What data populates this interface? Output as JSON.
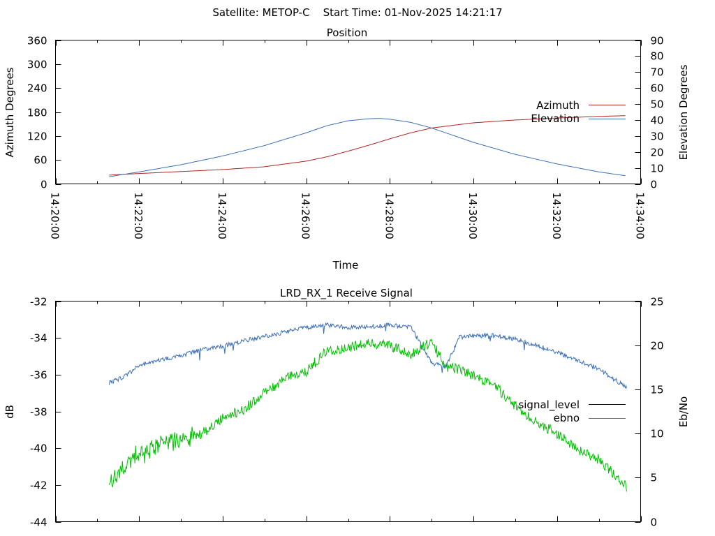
{
  "page_title": "Satellite: METOP-C    Start Time: 01-Nov-2025 14:21:17",
  "chart_data": [
    {
      "type": "line",
      "title": "Position",
      "xlabel": "Time",
      "ylabel": "Azimuth Degrees",
      "y2label": "Elevation Degrees",
      "xlim": [
        "14:20:00",
        "14:34:00"
      ],
      "x_ticks": [
        "14:20:00",
        "14:22:00",
        "14:24:00",
        "14:26:00",
        "14:28:00",
        "14:30:00",
        "14:32:00",
        "14:34:00"
      ],
      "ylim": [
        0,
        360
      ],
      "y_ticks": [
        "0",
        "60",
        "120",
        "180",
        "240",
        "300",
        "360"
      ],
      "y2lim": [
        0,
        90
      ],
      "y2_ticks": [
        "0",
        "10",
        "20",
        "30",
        "40",
        "50",
        "60",
        "70",
        "80",
        "90"
      ],
      "legend_position": "right",
      "series": [
        {
          "name": "Azimuth",
          "axis": "y",
          "color": "#b22222",
          "x": [
            "14:21:17",
            "14:22:00",
            "14:23:00",
            "14:24:00",
            "14:25:00",
            "14:26:00",
            "14:26:30",
            "14:27:00",
            "14:27:30",
            "14:28:00",
            "14:28:30",
            "14:29:00",
            "14:30:00",
            "14:31:00",
            "14:32:00",
            "14:33:00",
            "14:33:40"
          ],
          "y": [
            22,
            26,
            31,
            36,
            43,
            57,
            68,
            82,
            97,
            113,
            128,
            140,
            153,
            160,
            165,
            169,
            171
          ]
        },
        {
          "name": "Elevation",
          "axis": "y2",
          "color": "#3c6eb4",
          "x": [
            "14:21:17",
            "14:22:00",
            "14:23:00",
            "14:24:00",
            "14:25:00",
            "14:26:00",
            "14:26:30",
            "14:27:00",
            "14:27:30",
            "14:27:45",
            "14:28:00",
            "14:28:30",
            "14:29:00",
            "14:30:00",
            "14:31:00",
            "14:32:00",
            "14:33:00",
            "14:33:40"
          ],
          "y": [
            4.5,
            7.5,
            12,
            17.5,
            24,
            32,
            36.5,
            39.5,
            40.8,
            41,
            40.5,
            38.5,
            35,
            26,
            18.5,
            12.5,
            7.5,
            5
          ]
        }
      ]
    },
    {
      "type": "line",
      "title": "LRD_RX_1 Receive Signal",
      "xlabel": "",
      "ylabel": "dB",
      "y2label": "Eb/No",
      "xlim": [
        "14:20:00",
        "14:34:00"
      ],
      "ylim": [
        -44,
        -32
      ],
      "y_ticks": [
        "-44",
        "-42",
        "-40",
        "-38",
        "-36",
        "-34",
        "-32"
      ],
      "y2lim": [
        0,
        25
      ],
      "y2_ticks": [
        "0",
        "5",
        "10",
        "15",
        "20",
        "25"
      ],
      "legend_position": "right",
      "series": [
        {
          "name": "signal_level",
          "axis": "y",
          "color": "#00c000",
          "legend_color": "#000000",
          "x": [
            "14:21:17",
            "14:21:40",
            "14:22:00",
            "14:22:30",
            "14:23:00",
            "14:23:30",
            "14:24:00",
            "14:24:30",
            "14:25:00",
            "14:25:30",
            "14:26:00",
            "14:26:30",
            "14:27:00",
            "14:27:30",
            "14:28:00",
            "14:28:30",
            "14:29:00",
            "14:29:20",
            "14:29:40",
            "14:30:00",
            "14:30:30",
            "14:31:00",
            "14:31:30",
            "14:32:00",
            "14:32:30",
            "14:33:00",
            "14:33:40"
          ],
          "y": [
            -41.9,
            -41.0,
            -40.3,
            -39.8,
            -39.5,
            -39.2,
            -38.4,
            -37.9,
            -37.0,
            -36.2,
            -35.8,
            -34.7,
            -34.5,
            -34.3,
            -34.4,
            -34.9,
            -34.2,
            -35.6,
            -35.7,
            -36.1,
            -36.6,
            -37.7,
            -38.6,
            -39.2,
            -40.1,
            -40.6,
            -42.1
          ]
        },
        {
          "name": "ebno",
          "axis": "y2",
          "color": "#3c6eb4",
          "x": [
            "14:21:17",
            "14:21:40",
            "14:22:00",
            "14:22:30",
            "14:23:00",
            "14:23:30",
            "14:24:00",
            "14:24:30",
            "14:25:00",
            "14:25:30",
            "14:26:00",
            "14:26:30",
            "14:27:00",
            "14:27:30",
            "14:28:00",
            "14:28:30",
            "14:29:00",
            "14:29:20",
            "14:29:40",
            "14:30:00",
            "14:30:30",
            "14:31:00",
            "14:31:30",
            "14:32:00",
            "14:32:30",
            "14:33:00",
            "14:33:40"
          ],
          "y": [
            15.7,
            16.5,
            17.7,
            18.3,
            18.8,
            19.5,
            19.9,
            20.5,
            21.0,
            21.5,
            22.0,
            22.3,
            22.0,
            22.1,
            22.3,
            22.1,
            18.0,
            17.5,
            20.9,
            21.1,
            21.1,
            20.7,
            20.0,
            19.2,
            18.3,
            17.3,
            15.2
          ]
        }
      ]
    }
  ]
}
